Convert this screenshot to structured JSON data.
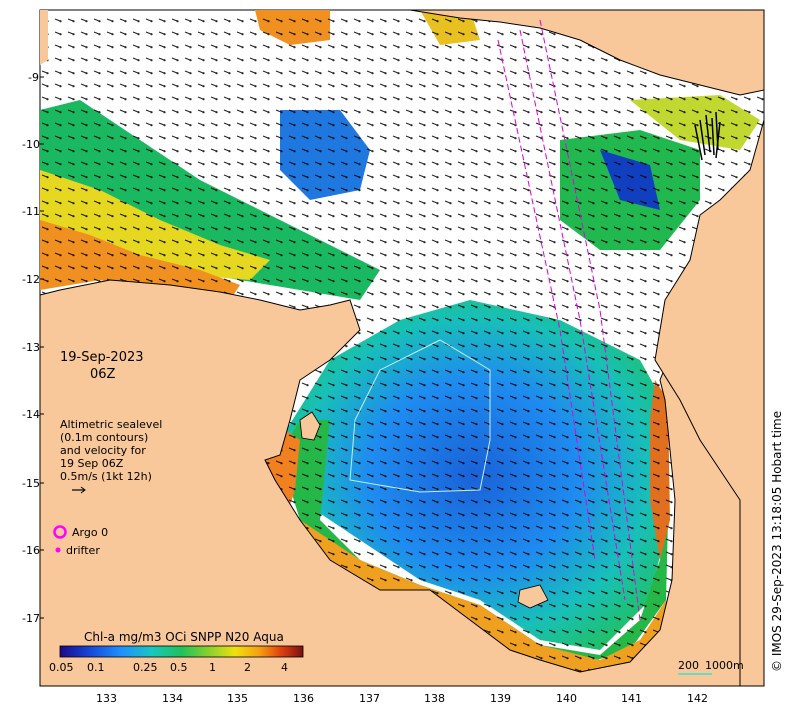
{
  "map": {
    "date_line1": "19-Sep-2023",
    "date_line2": "06Z",
    "legend_text": [
      "Altimetric sealevel",
      "(0.1m contours)",
      "and velocity for",
      "19 Sep 06Z",
      "0.5m/s (1kt 12h)"
    ],
    "argo_label": "Argo 0",
    "drifter_label": "drifter",
    "scale_label_200": "200",
    "scale_label_1000": "1000m",
    "credit": "© IMOS 29-Sep-2023 13:18:05 Hobart time",
    "colorbar_title": "Chl-a mg/m3 OCi SNPP N20 Aqua",
    "colorbar_ticks": [
      "0.05",
      "0.1",
      "0.25",
      "0.5",
      "1",
      "2",
      "4"
    ],
    "lon_ticks": [
      "133",
      "134",
      "135",
      "136",
      "137",
      "138",
      "139",
      "140",
      "141",
      "142"
    ],
    "lat_ticks": [
      "-9",
      "-10",
      "-11",
      "-12",
      "-13",
      "-14",
      "-15",
      "-16",
      "-17"
    ],
    "colors": {
      "land": "#f8c89a",
      "argo": "#ff00ff",
      "drifter": "#ff00ff",
      "scale_bar": "#40e0d0"
    }
  }
}
